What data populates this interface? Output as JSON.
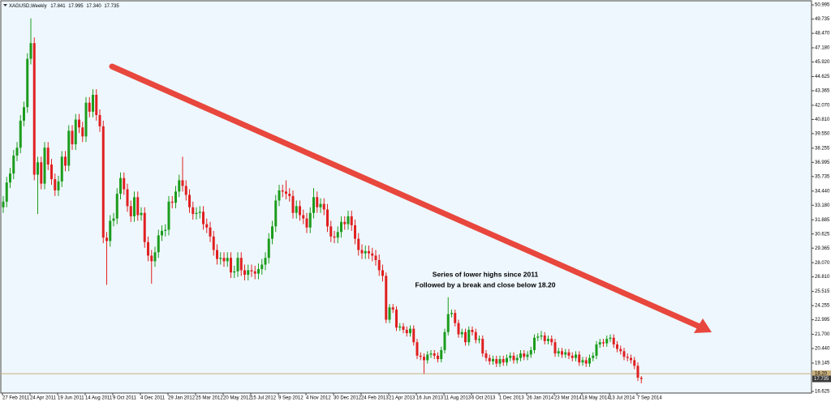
{
  "header": {
    "symbol": "XAGUSD,Weekly",
    "open": "17.841",
    "high": "17.995",
    "low": "17.340",
    "close": "17.735"
  },
  "chart_data": {
    "type": "candlestick",
    "categories": [
      "27 Feb 2011",
      null,
      null,
      null,
      null,
      null,
      null,
      null,
      "24 Apr 2011",
      null,
      null,
      null,
      null,
      null,
      null,
      null,
      "19 Jun 2011",
      null,
      null,
      null,
      null,
      null,
      null,
      null,
      "14 Aug 2011",
      null,
      null,
      null,
      null,
      null,
      null,
      null,
      "9 Oct 2011",
      null,
      null,
      null,
      null,
      null,
      null,
      null,
      "4 Dec 2011",
      null,
      null,
      null,
      null,
      null,
      null,
      null,
      "29 Jan 2012",
      null,
      null,
      null,
      null,
      null,
      null,
      null,
      "25 Mar 2012",
      null,
      null,
      null,
      null,
      null,
      null,
      null,
      "20 May 2012",
      null,
      null,
      null,
      null,
      null,
      null,
      null,
      "15 Jul 2012",
      null,
      null,
      null,
      null,
      null,
      null,
      null,
      "9 Sep 2012",
      null,
      null,
      null,
      null,
      null,
      null,
      null,
      "4 Nov 2012",
      null,
      null,
      null,
      null,
      null,
      null,
      null,
      "30 Dec 2012",
      null,
      null,
      null,
      null,
      null,
      null,
      null,
      "24 Feb 2013",
      null,
      null,
      null,
      null,
      null,
      null,
      null,
      "21 Apr 2013",
      null,
      null,
      null,
      null,
      null,
      null,
      null,
      "16 Jun 2013",
      null,
      null,
      null,
      null,
      null,
      null,
      null,
      "11 Aug 2013",
      null,
      null,
      null,
      null,
      null,
      null,
      null,
      "6 Oct 2013",
      null,
      null,
      null,
      null,
      null,
      null,
      null,
      "1 Dec 2013",
      null,
      null,
      null,
      null,
      null,
      null,
      null,
      "26 Jan 2014",
      null,
      null,
      null,
      null,
      null,
      null,
      null,
      "23 Mar 2014",
      null,
      null,
      null,
      null,
      null,
      null,
      null,
      "18 May 2014",
      null,
      null,
      null,
      null,
      null,
      null,
      null,
      "13 Jul 2014",
      null,
      null,
      null,
      null,
      null,
      null,
      null,
      "7 Sep 2014",
      null
    ],
    "open": [
      33.0,
      33.5,
      35.2,
      36.0,
      37.6,
      38.3,
      40.7,
      41.9,
      46.2,
      47.6,
      35.9,
      37.0,
      35.1,
      38.3,
      36.8,
      35.5,
      34.5,
      35.3,
      37.5,
      36.7,
      39.8,
      38.6,
      40.8,
      40.1,
      39.3,
      42.3,
      41.5,
      43.0,
      41.2,
      40.2,
      30.3,
      30.0,
      31.8,
      32.0,
      34.2,
      35.6,
      34.6,
      33.1,
      32.2,
      33.9,
      32.3,
      32.5,
      29.9,
      28.7,
      28.2,
      29.0,
      30.5,
      30.9,
      31.0,
      33.5,
      33.4,
      34.4,
      35.4,
      34.9,
      34.1,
      33.0,
      32.4,
      32.5,
      32.6,
      31.5,
      31.2,
      30.4,
      29.2,
      28.4,
      28.5,
      28.2,
      28.5,
      27.2,
      27.3,
      28.5,
      27.4,
      27.0,
      27.4,
      27.3,
      27.1,
      27.5,
      27.9,
      28.5,
      30.2,
      31.3,
      33.6,
      34.5,
      34.4,
      34.2,
      34.0,
      32.5,
      33.1,
      32.3,
      32.0,
      31.2,
      32.5,
      33.9,
      33.0,
      33.3,
      32.8,
      31.3,
      30.4,
      30.3,
      30.8,
      31.7,
      31.5,
      32.2,
      31.4,
      30.2,
      29.2,
      28.9,
      29.1,
      28.9,
      28.7,
      28.3,
      27.4,
      26.9,
      23.0,
      24.1,
      23.9,
      22.3,
      22.4,
      22.1,
      21.8,
      22.2,
      21.0,
      19.8,
      19.7,
      19.4,
      19.9,
      20.0,
      19.8,
      19.5,
      20.3,
      21.9,
      23.5,
      23.6,
      22.7,
      21.7,
      21.9,
      21.0,
      22.1,
      21.9,
      21.2,
      21.3,
      20.0,
      19.6,
      19.3,
      19.5,
      19.1,
      19.5,
      19.2,
      19.6,
      19.8,
      19.4,
      19.6,
      20.0,
      19.7,
      19.9,
      20.3,
      21.4,
      21.5,
      21.6,
      21.1,
      21.3,
      21.0,
      20.0,
      20.2,
      19.9,
      20.1,
      19.8,
      19.6,
      19.9,
      19.2,
      19.4,
      19.1,
      19.6,
      19.8,
      20.8,
      21.0,
      20.9,
      21.3,
      21.4,
      20.8,
      20.4,
      20.2,
      19.7,
      19.6,
      19.4,
      18.9,
      17.841
    ],
    "high": [
      34.0,
      35.7,
      36.5,
      38.1,
      38.8,
      41.2,
      42.4,
      46.7,
      49.8,
      48.1,
      37.5,
      37.5,
      38.8,
      38.8,
      37.3,
      36.0,
      35.8,
      38.0,
      38.0,
      40.3,
      40.3,
      41.3,
      41.3,
      40.6,
      42.8,
      42.8,
      43.5,
      43.5,
      41.7,
      40.7,
      30.8,
      32.3,
      32.5,
      34.7,
      36.1,
      36.1,
      35.1,
      33.6,
      34.4,
      34.4,
      33.0,
      33.0,
      30.4,
      29.2,
      29.5,
      31.0,
      31.4,
      31.5,
      34.0,
      34.0,
      34.9,
      35.9,
      37.5,
      35.4,
      34.6,
      33.5,
      33.0,
      33.1,
      33.1,
      32.0,
      31.7,
      30.9,
      29.7,
      29.0,
      29.0,
      29.0,
      29.0,
      27.8,
      29.0,
      29.0,
      27.9,
      27.9,
      27.9,
      27.8,
      28.0,
      28.4,
      29.0,
      30.7,
      31.8,
      34.1,
      35.0,
      35.0,
      35.4,
      34.7,
      34.5,
      33.6,
      33.6,
      32.8,
      32.5,
      33.0,
      34.7,
      34.4,
      33.8,
      33.8,
      33.3,
      31.8,
      30.9,
      31.3,
      32.2,
      32.2,
      32.7,
      32.7,
      31.9,
      30.7,
      29.7,
      29.6,
      29.6,
      29.4,
      29.2,
      28.8,
      27.9,
      27.2,
      24.4,
      24.4,
      24.2,
      22.7,
      22.7,
      22.4,
      22.5,
      22.5,
      21.3,
      20.1,
      20.0,
      20.2,
      20.3,
      20.3,
      20.1,
      20.6,
      22.2,
      25.0,
      23.9,
      23.9,
      23.0,
      22.2,
      22.2,
      22.4,
      22.4,
      22.2,
      21.6,
      21.6,
      20.3,
      19.9,
      19.8,
      19.8,
      19.8,
      19.8,
      19.9,
      20.1,
      20.1,
      19.9,
      20.3,
      20.3,
      20.2,
      20.6,
      21.7,
      21.8,
      22.0,
      21.9,
      21.6,
      21.6,
      21.3,
      20.5,
      20.5,
      20.4,
      20.4,
      20.1,
      20.2,
      20.2,
      19.7,
      19.7,
      19.9,
      20.1,
      21.1,
      21.3,
      21.3,
      21.6,
      21.7,
      21.7,
      21.1,
      20.7,
      20.5,
      20.0,
      19.9,
      19.7,
      19.2,
      17.995
    ],
    "low": [
      32.5,
      33.0,
      34.7,
      35.5,
      37.1,
      37.8,
      40.2,
      41.4,
      45.7,
      35.4,
      32.4,
      34.6,
      34.6,
      36.3,
      35.0,
      34.0,
      34.0,
      34.8,
      36.2,
      36.2,
      38.1,
      38.1,
      39.6,
      38.8,
      38.8,
      41.0,
      41.0,
      40.7,
      39.7,
      29.8,
      26.1,
      29.5,
      31.3,
      31.5,
      33.7,
      34.1,
      32.6,
      31.7,
      31.7,
      31.8,
      31.8,
      29.4,
      28.2,
      26.2,
      27.7,
      28.5,
      30.0,
      30.4,
      30.5,
      32.9,
      32.9,
      33.9,
      34.4,
      33.6,
      32.5,
      31.9,
      31.9,
      32.0,
      31.0,
      30.7,
      29.9,
      28.7,
      27.9,
      27.9,
      27.7,
      27.7,
      26.7,
      26.7,
      26.8,
      26.9,
      26.5,
      26.5,
      26.8,
      26.6,
      26.6,
      27.0,
      27.4,
      28.0,
      29.7,
      30.8,
      33.1,
      33.9,
      33.7,
      33.5,
      32.0,
      32.0,
      31.8,
      31.5,
      30.7,
      30.7,
      32.0,
      32.5,
      32.5,
      32.3,
      30.8,
      29.9,
      29.8,
      29.8,
      30.3,
      31.0,
      31.0,
      30.9,
      29.7,
      28.7,
      28.4,
      28.4,
      28.4,
      28.2,
      27.8,
      26.9,
      26.4,
      22.7,
      22.7,
      23.6,
      22.0,
      22.0,
      21.8,
      21.5,
      21.5,
      20.7,
      19.5,
      19.4,
      18.2,
      19.1,
      19.6,
      19.5,
      19.2,
      19.2,
      20.0,
      21.6,
      23.2,
      22.4,
      21.4,
      21.4,
      20.7,
      20.7,
      21.6,
      20.9,
      20.9,
      19.7,
      19.3,
      19.0,
      19.0,
      18.8,
      18.8,
      18.9,
      18.9,
      19.3,
      19.1,
      19.1,
      19.3,
      19.4,
      19.4,
      19.6,
      20.0,
      21.1,
      21.2,
      20.8,
      20.8,
      20.7,
      19.7,
      19.7,
      19.6,
      19.6,
      19.5,
      19.3,
      19.3,
      18.9,
      18.9,
      18.8,
      18.8,
      19.3,
      19.5,
      20.5,
      20.6,
      20.6,
      21.0,
      20.5,
      20.1,
      19.9,
      19.4,
      19.3,
      19.1,
      18.6,
      17.55,
      17.34
    ],
    "close": [
      33.5,
      35.2,
      36.0,
      37.6,
      38.3,
      40.7,
      41.9,
      46.2,
      47.6,
      35.9,
      37.0,
      35.1,
      38.3,
      36.8,
      35.5,
      34.5,
      35.3,
      37.5,
      36.7,
      39.8,
      38.6,
      40.8,
      40.1,
      39.3,
      42.3,
      41.5,
      43.0,
      41.2,
      40.2,
      30.3,
      30.0,
      31.8,
      32.0,
      34.2,
      35.6,
      34.6,
      33.1,
      32.2,
      33.9,
      32.3,
      32.5,
      29.9,
      28.7,
      28.2,
      29.0,
      30.5,
      30.9,
      31.0,
      33.5,
      33.4,
      34.4,
      35.4,
      34.9,
      34.1,
      33.0,
      32.4,
      32.5,
      32.6,
      31.5,
      31.2,
      30.4,
      29.2,
      28.4,
      28.5,
      28.2,
      28.5,
      27.2,
      27.3,
      28.5,
      27.4,
      27.0,
      27.4,
      27.3,
      27.1,
      27.5,
      27.9,
      28.5,
      30.2,
      31.3,
      33.6,
      34.5,
      34.4,
      34.2,
      34.0,
      32.5,
      33.1,
      32.3,
      32.0,
      31.2,
      32.5,
      33.9,
      33.0,
      33.3,
      32.8,
      31.3,
      30.4,
      30.3,
      30.8,
      31.7,
      31.5,
      32.2,
      31.4,
      30.2,
      29.2,
      28.9,
      29.1,
      28.9,
      28.7,
      28.3,
      27.4,
      26.9,
      23.0,
      24.1,
      23.9,
      22.3,
      22.4,
      22.1,
      21.8,
      22.2,
      21.0,
      19.8,
      19.7,
      19.4,
      19.9,
      20.0,
      19.8,
      19.5,
      20.3,
      21.9,
      23.5,
      23.6,
      22.7,
      21.7,
      21.9,
      21.0,
      22.1,
      21.9,
      21.2,
      21.3,
      20.0,
      19.6,
      19.3,
      19.5,
      19.1,
      19.5,
      19.2,
      19.6,
      19.8,
      19.4,
      19.6,
      20.0,
      19.7,
      19.9,
      20.3,
      21.4,
      21.5,
      21.6,
      21.1,
      21.3,
      21.0,
      20.0,
      20.2,
      19.9,
      20.1,
      19.8,
      19.6,
      19.9,
      19.2,
      19.4,
      19.1,
      19.6,
      19.8,
      20.8,
      21.0,
      20.9,
      21.3,
      21.4,
      20.8,
      20.4,
      20.2,
      19.7,
      19.6,
      19.4,
      18.9,
      17.85,
      17.735
    ],
    "up_color": "#1c9c1c",
    "down_color": "#e02020",
    "ylim": [
      16.48,
      51.36
    ],
    "yticks": [
      50.995,
      49.735,
      {
        "value": 48.47,
        "label": "48.470"
      },
      {
        "value": 47.18,
        "label": "47.180"
      },
      {
        "value": 45.92,
        "label": "45.920"
      },
      44.625,
      43.365,
      {
        "value": 42.07,
        "label": "42.070"
      },
      {
        "value": 40.81,
        "label": "40.810"
      },
      {
        "value": 39.55,
        "label": "39.550"
      },
      38.255,
      36.995,
      35.735,
      {
        "value": 34.44,
        "label": "34.440"
      },
      {
        "value": 33.18,
        "label": "33.180"
      },
      31.885,
      30.625,
      29.365,
      {
        "value": 28.07,
        "label": "28.070"
      },
      {
        "value": 26.81,
        "label": "26.810"
      },
      25.515,
      24.255,
      22.995,
      {
        "value": 21.7,
        "label": "21.700"
      },
      {
        "value": 20.44,
        "label": "20.440"
      },
      19.145,
      16.625
    ],
    "hline": {
      "value": 18.2,
      "label": "18.20",
      "color": "#c9b07e"
    },
    "annotation": [
      "Series of lower highs since 2011",
      "Followed by a break and close below 18.20"
    ],
    "grid": false
  }
}
